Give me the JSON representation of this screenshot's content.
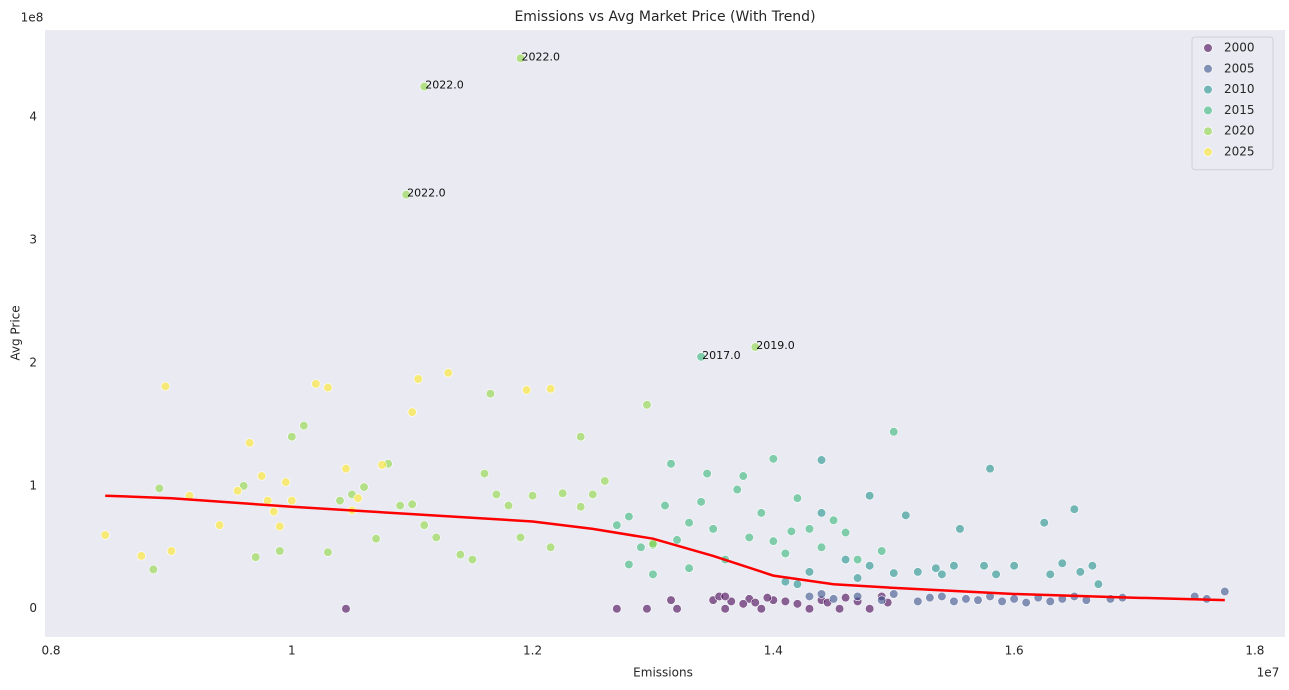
{
  "chart_data": {
    "type": "scatter",
    "title": "Emissions vs Avg Market Price (With Trend)",
    "x_label": "Emissions",
    "y_label": "Avg Price",
    "x_offset_label": "1e7",
    "y_offset_label": "1e8",
    "xlim": [
      0.795,
      1.825
    ],
    "ylim": [
      -0.23,
      4.71
    ],
    "xticks": [
      0.8,
      1.0,
      1.2,
      1.4,
      1.6,
      1.8
    ],
    "yticks": [
      0,
      1,
      2,
      3,
      4
    ],
    "grid": false,
    "legend": "upper right",
    "series": [
      {
        "name": "2000",
        "color": "#440154",
        "x": [
          1.045,
          1.27,
          1.295,
          1.315,
          1.32,
          1.35,
          1.355,
          1.36,
          1.365,
          1.38,
          1.385,
          1.39,
          1.4,
          1.41,
          1.42,
          1.43,
          1.44,
          1.445,
          1.455,
          1.46,
          1.47,
          1.48,
          1.49,
          1.495,
          1.36,
          1.375,
          1.395
        ],
        "values": [
          0.0,
          0.0,
          0.0,
          0.07,
          0.0,
          0.07,
          0.1,
          0.0,
          0.06,
          0.08,
          0.05,
          0.0,
          0.07,
          0.06,
          0.04,
          0.0,
          0.07,
          0.05,
          0.0,
          0.09,
          0.06,
          0.0,
          0.1,
          0.05,
          0.1,
          0.04,
          0.09
        ]
      },
      {
        "name": "2005",
        "color": "#3b528b",
        "x": [
          1.43,
          1.44,
          1.45,
          1.47,
          1.49,
          1.5,
          1.52,
          1.53,
          1.54,
          1.55,
          1.56,
          1.57,
          1.58,
          1.59,
          1.6,
          1.61,
          1.62,
          1.63,
          1.64,
          1.65,
          1.66,
          1.68,
          1.69,
          1.75,
          1.76,
          1.775
        ],
        "values": [
          0.1,
          0.12,
          0.08,
          0.1,
          0.07,
          0.12,
          0.06,
          0.09,
          0.1,
          0.06,
          0.08,
          0.07,
          0.1,
          0.06,
          0.08,
          0.05,
          0.09,
          0.06,
          0.08,
          0.1,
          0.07,
          0.08,
          0.09,
          0.1,
          0.08,
          0.14
        ]
      },
      {
        "name": "2010",
        "color": "#21918c",
        "x": [
          1.52,
          1.535,
          1.54,
          1.55,
          1.555,
          1.575,
          1.58,
          1.585,
          1.6,
          1.625,
          1.63,
          1.64,
          1.65,
          1.655,
          1.665,
          1.67,
          1.51,
          1.47,
          1.44,
          1.44,
          1.43,
          1.46,
          1.48,
          1.48,
          1.5,
          1.42,
          1.41
        ],
        "values": [
          0.3,
          0.33,
          0.28,
          0.35,
          0.65,
          0.35,
          1.14,
          0.28,
          0.35,
          0.7,
          0.28,
          0.37,
          0.81,
          0.3,
          0.35,
          0.2,
          0.76,
          0.25,
          1.21,
          0.78,
          0.3,
          0.4,
          0.35,
          0.92,
          0.29,
          0.2,
          0.22
        ]
      },
      {
        "name": "2015",
        "color": "#35b779",
        "x": [
          1.27,
          1.28,
          1.29,
          1.3,
          1.31,
          1.315,
          1.32,
          1.33,
          1.34,
          1.345,
          1.35,
          1.36,
          1.37,
          1.375,
          1.38,
          1.39,
          1.4,
          1.41,
          1.415,
          1.42,
          1.43,
          1.44,
          1.45,
          1.46,
          1.47,
          1.4,
          1.5,
          1.49,
          1.34,
          1.28,
          1.3,
          1.33
        ],
        "values": [
          0.68,
          0.75,
          0.5,
          0.52,
          0.84,
          1.18,
          0.56,
          0.7,
          0.87,
          1.1,
          0.65,
          0.4,
          0.97,
          1.08,
          0.58,
          0.78,
          0.55,
          0.45,
          0.63,
          0.9,
          0.65,
          0.5,
          0.72,
          0.62,
          0.4,
          1.22,
          1.44,
          0.47,
          2.05,
          0.36,
          0.28,
          0.33
        ]
      },
      {
        "name": "2020",
        "color": "#90d743",
        "x": [
          0.89,
          0.885,
          0.96,
          0.97,
          0.99,
          1.0,
          1.01,
          1.03,
          1.04,
          1.05,
          1.07,
          1.08,
          1.09,
          1.1,
          1.11,
          1.12,
          1.14,
          1.15,
          1.16,
          1.17,
          1.18,
          1.19,
          1.2,
          1.215,
          1.225,
          1.24,
          1.25,
          1.26,
          1.295,
          1.3,
          1.24,
          1.11,
          1.19,
          1.095,
          1.385,
          1.165,
          1.06
        ],
        "values": [
          0.98,
          0.32,
          1.0,
          0.42,
          0.47,
          1.4,
          1.49,
          0.46,
          0.88,
          0.93,
          0.57,
          1.18,
          0.84,
          0.85,
          0.68,
          0.58,
          0.44,
          0.4,
          1.1,
          0.93,
          0.84,
          0.58,
          0.92,
          0.5,
          0.94,
          1.4,
          0.93,
          1.04,
          1.66,
          0.53,
          0.83,
          4.25,
          4.48,
          3.37,
          2.13,
          1.75,
          0.99
        ]
      },
      {
        "name": "2025",
        "color": "#fde725",
        "x": [
          0.845,
          0.875,
          0.895,
          0.9,
          0.915,
          0.94,
          0.955,
          0.965,
          0.975,
          0.98,
          0.985,
          0.99,
          0.995,
          1.0,
          1.02,
          1.03,
          1.045,
          1.055,
          1.1,
          1.105,
          1.13,
          1.195,
          1.215,
          1.05,
          1.075
        ],
        "values": [
          0.6,
          0.43,
          1.81,
          0.47,
          0.92,
          0.68,
          0.96,
          1.35,
          1.08,
          0.88,
          0.79,
          0.67,
          1.03,
          0.88,
          1.83,
          1.8,
          1.14,
          0.9,
          1.6,
          1.87,
          1.92,
          1.78,
          1.79,
          0.8,
          1.17
        ]
      }
    ],
    "trend": {
      "color": "#ff0000",
      "x": [
        0.845,
        0.9,
        1.0,
        1.1,
        1.2,
        1.25,
        1.3,
        1.35,
        1.4,
        1.45,
        1.5,
        1.6,
        1.7,
        1.775
      ],
      "values": [
        0.92,
        0.9,
        0.83,
        0.77,
        0.71,
        0.65,
        0.57,
        0.43,
        0.27,
        0.2,
        0.17,
        0.12,
        0.09,
        0.07
      ]
    },
    "annotations": [
      {
        "text": "2022.0",
        "x": 1.19,
        "y": 4.48
      },
      {
        "text": "2022.0",
        "x": 1.11,
        "y": 4.25
      },
      {
        "text": "2022.0",
        "x": 1.095,
        "y": 3.37
      },
      {
        "text": "2017.0",
        "x": 1.34,
        "y": 2.05
      },
      {
        "text": "2019.0",
        "x": 1.385,
        "y": 2.13
      }
    ]
  }
}
